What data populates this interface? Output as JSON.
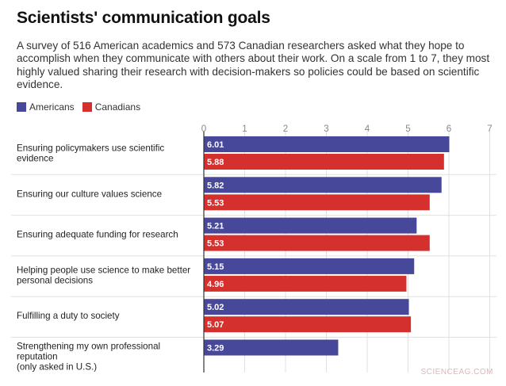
{
  "header": {
    "title": "Scientists' communication goals",
    "subtitle": "A survey of 516 American academics and 573 Canadian researchers asked what they hope to accomplish when they communicate with others about their work. On a scale from 1 to 7, they most highly valued sharing their research with decision-makers so policies could be based on scientific evidence."
  },
  "watermark": "SCIENCEAG.COM",
  "colors": {
    "americans": "#48489a",
    "canadians": "#d3302e",
    "grid": "#e0e0e0",
    "axis": "#333333"
  },
  "chart_data": {
    "type": "bar",
    "orientation": "horizontal",
    "xlim": [
      0,
      7
    ],
    "ticks": [
      0,
      1,
      2,
      3,
      4,
      5,
      6,
      7
    ],
    "grid": true,
    "legend_position": "top-left",
    "categories": [
      [
        "Ensuring policymakers use scientific",
        "evidence"
      ],
      [
        "Ensuring our culture values science"
      ],
      [
        "Ensuring adequate funding for research"
      ],
      [
        "Helping people use science to make better",
        "personal decisions"
      ],
      [
        "Fulfilling a duty to society"
      ],
      [
        "Strengthening my own professional",
        "reputation",
        "(only asked in U.S.)"
      ]
    ],
    "series": [
      {
        "name": "Americans",
        "color": "#48489a",
        "values": [
          6.01,
          5.82,
          5.21,
          5.15,
          5.02,
          3.29
        ]
      },
      {
        "name": "Canadians",
        "color": "#d3302e",
        "values": [
          5.88,
          5.53,
          5.53,
          4.96,
          5.07,
          null
        ]
      }
    ]
  }
}
